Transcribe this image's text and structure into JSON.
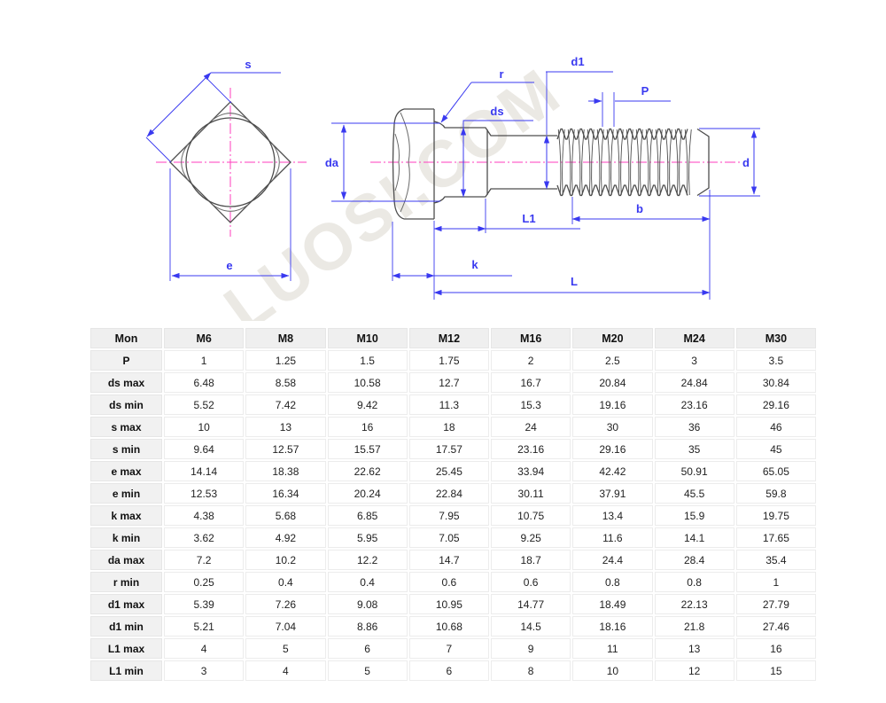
{
  "drawing": {
    "watermark": "LUOSI.COM",
    "colors": {
      "dimension": "#3939f0",
      "centerline": "#ff3dbe",
      "outline": "#4d4d4d",
      "watermark": "#ebe9e4"
    },
    "top_view": {
      "dim_s": "s",
      "dim_e": "e"
    },
    "side_view": {
      "dim_da": "da",
      "dim_r": "r",
      "dim_ds": "ds",
      "dim_d1": "d1",
      "dim_p": "P",
      "dim_d": "d",
      "dim_b": "b",
      "dim_l1": "L1",
      "dim_k": "k",
      "dim_l": "L"
    }
  },
  "table": {
    "headers": [
      "Mon",
      "M6",
      "M8",
      "M10",
      "M12",
      "M16",
      "M20",
      "M24",
      "M30"
    ],
    "rows": [
      {
        "label": "P",
        "values": [
          "1",
          "1.25",
          "1.5",
          "1.75",
          "2",
          "2.5",
          "3",
          "3.5"
        ]
      },
      {
        "label": "ds max",
        "values": [
          "6.48",
          "8.58",
          "10.58",
          "12.7",
          "16.7",
          "20.84",
          "24.84",
          "30.84"
        ]
      },
      {
        "label": "ds min",
        "values": [
          "5.52",
          "7.42",
          "9.42",
          "11.3",
          "15.3",
          "19.16",
          "23.16",
          "29.16"
        ]
      },
      {
        "label": "s max",
        "values": [
          "10",
          "13",
          "16",
          "18",
          "24",
          "30",
          "36",
          "46"
        ]
      },
      {
        "label": "s min",
        "values": [
          "9.64",
          "12.57",
          "15.57",
          "17.57",
          "23.16",
          "29.16",
          "35",
          "45"
        ]
      },
      {
        "label": "e max",
        "values": [
          "14.14",
          "18.38",
          "22.62",
          "25.45",
          "33.94",
          "42.42",
          "50.91",
          "65.05"
        ]
      },
      {
        "label": "e min",
        "values": [
          "12.53",
          "16.34",
          "20.24",
          "22.84",
          "30.11",
          "37.91",
          "45.5",
          "59.8"
        ]
      },
      {
        "label": "k max",
        "values": [
          "4.38",
          "5.68",
          "6.85",
          "7.95",
          "10.75",
          "13.4",
          "15.9",
          "19.75"
        ]
      },
      {
        "label": "k min",
        "values": [
          "3.62",
          "4.92",
          "5.95",
          "7.05",
          "9.25",
          "11.6",
          "14.1",
          "17.65"
        ]
      },
      {
        "label": "da max",
        "values": [
          "7.2",
          "10.2",
          "12.2",
          "14.7",
          "18.7",
          "24.4",
          "28.4",
          "35.4"
        ]
      },
      {
        "label": "r min",
        "values": [
          "0.25",
          "0.4",
          "0.4",
          "0.6",
          "0.6",
          "0.8",
          "0.8",
          "1"
        ]
      },
      {
        "label": "d1 max",
        "values": [
          "5.39",
          "7.26",
          "9.08",
          "10.95",
          "14.77",
          "18.49",
          "22.13",
          "27.79"
        ]
      },
      {
        "label": "d1 min",
        "values": [
          "5.21",
          "7.04",
          "8.86",
          "10.68",
          "14.5",
          "18.16",
          "21.8",
          "27.46"
        ]
      },
      {
        "label": "L1 max",
        "values": [
          "4",
          "5",
          "6",
          "7",
          "9",
          "11",
          "13",
          "16"
        ]
      },
      {
        "label": "L1 min",
        "values": [
          "3",
          "4",
          "5",
          "6",
          "8",
          "10",
          "12",
          "15"
        ]
      }
    ]
  }
}
